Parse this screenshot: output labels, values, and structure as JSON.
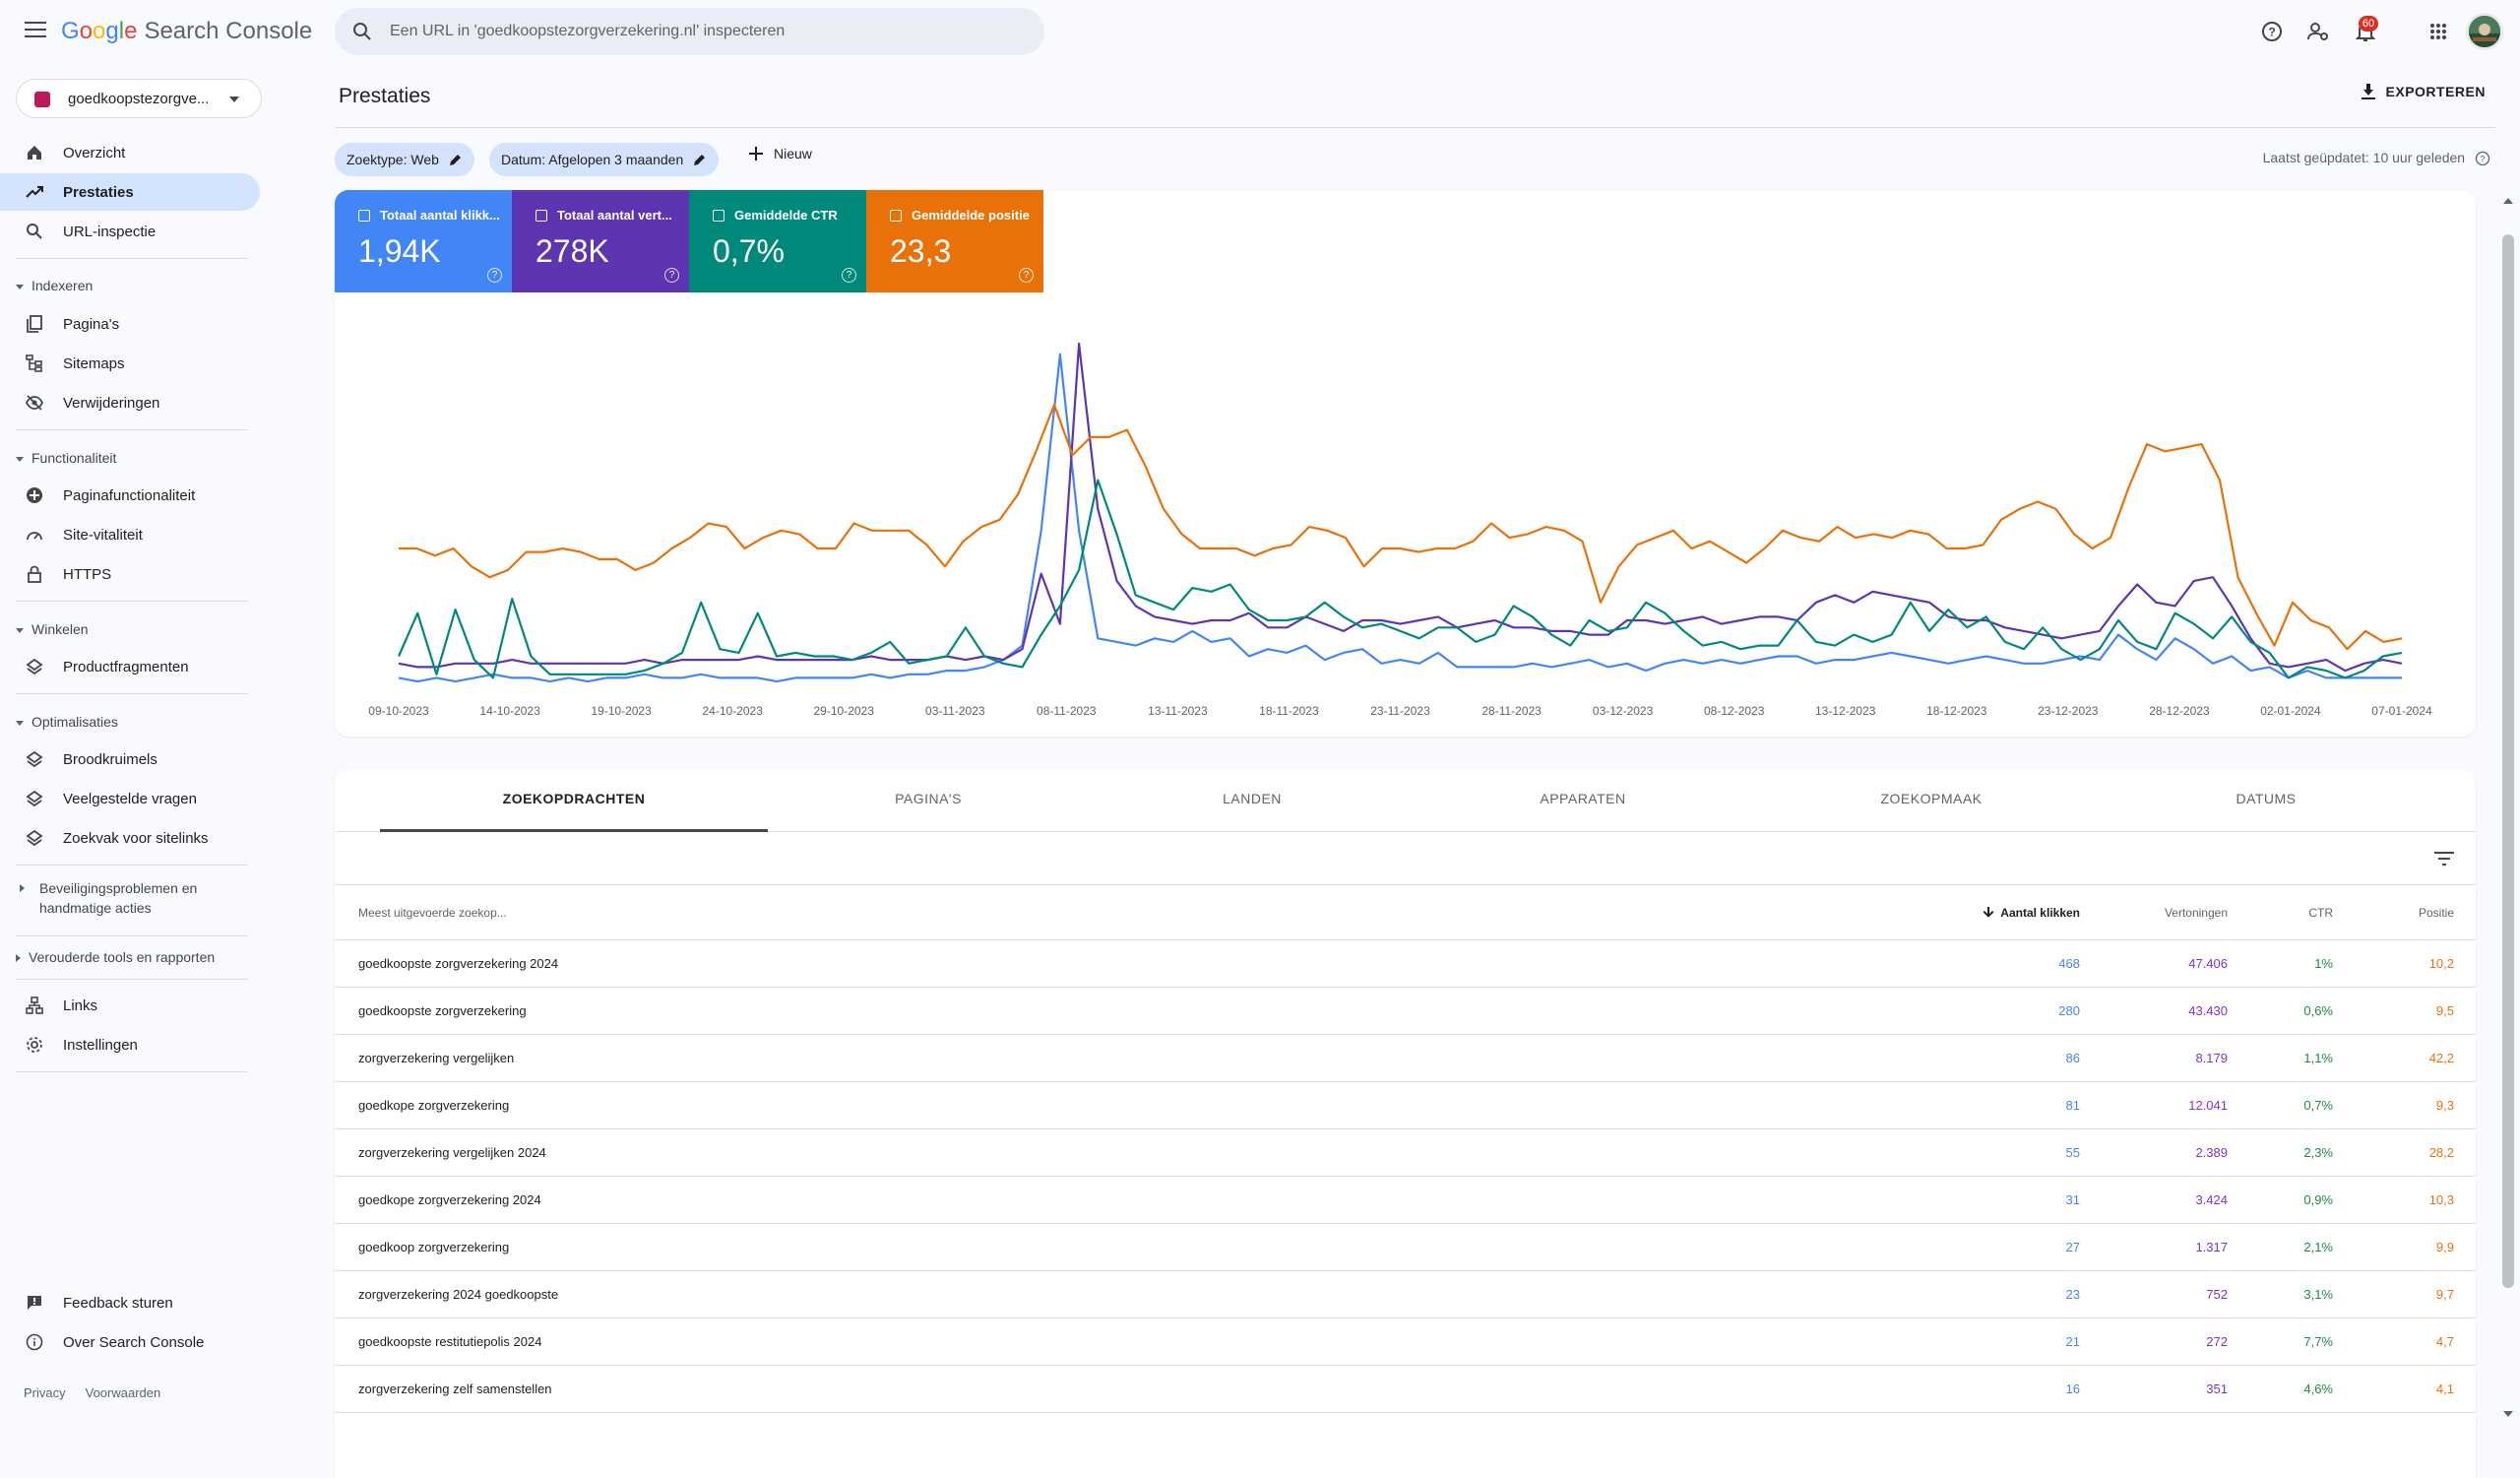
{
  "app": {
    "logo_google": "Google",
    "logo_product": "Search Console",
    "search_placeholder": "Een URL in 'goedkoopstezorgverzekering.nl' inspecteren",
    "notifications_count": "60"
  },
  "sidebar": {
    "property": "goedkoopstezorgve...",
    "items": {
      "overview": "Overzicht",
      "performance": "Prestaties",
      "url": "URL-inspectie",
      "pages": "Pagina's",
      "sitemaps": "Sitemaps",
      "removals": "Verwijderingen",
      "page_exp": "Paginafunctionaliteit",
      "vitals": "Site-vitaliteit",
      "https": "HTTPS",
      "products": "Productfragmenten",
      "breadcrumbs": "Broodkruimels",
      "faq": "Veelgestelde vragen",
      "sitelinks": "Zoekvak voor sitelinks",
      "links": "Links",
      "settings": "Instellingen",
      "feedback": "Feedback sturen",
      "about": "Over Search Console"
    },
    "sections": {
      "indexing": "Indexeren",
      "functionality": "Functionaliteit",
      "shopping": "Winkelen",
      "enhancements": "Optimalisaties",
      "security": "Beveiligingsproblemen en handmatige acties",
      "legacy": "Verouderde tools en rapporten"
    },
    "footer": {
      "privacy": "Privacy",
      "terms": "Voorwaarden"
    }
  },
  "main": {
    "title": "Prestaties",
    "export": "EXPORTEREN",
    "filters": {
      "type": "Zoektype: Web",
      "date": "Datum: Afgelopen 3 maanden",
      "new": "Nieuw"
    },
    "updated": "Laatst geüpdatet: 10 uur geleden",
    "metrics": [
      {
        "label": "Totaal aantal klikk...",
        "value": "1,94K",
        "color": "#4285f4"
      },
      {
        "label": "Totaal aantal vert...",
        "value": "278K",
        "color": "#5e35b1"
      },
      {
        "label": "Gemiddelde CTR",
        "value": "0,7%",
        "color": "#00897b"
      },
      {
        "label": "Gemiddelde positie",
        "value": "23,3",
        "color": "#e8710a"
      }
    ],
    "tabs": [
      "ZOEKOPDRACHTEN",
      "PAGINA'S",
      "LANDEN",
      "APPARATEN",
      "ZOEKOPMAAK",
      "DATUMS"
    ],
    "table": {
      "headers": [
        "Meest uitgevoerde zoekop...",
        "Aantal klikken",
        "Vertoningen",
        "CTR",
        "Positie"
      ],
      "rows": [
        [
          "goedkoopste zorgverzekering 2024",
          "468",
          "47.406",
          "1%",
          "10,2"
        ],
        [
          "goedkoopste zorgverzekering",
          "280",
          "43.430",
          "0,6%",
          "9,5"
        ],
        [
          "zorgverzekering vergelijken",
          "86",
          "8.179",
          "1,1%",
          "42,2"
        ],
        [
          "goedkope zorgverzekering",
          "81",
          "12.041",
          "0,7%",
          "9,3"
        ],
        [
          "zorgverzekering vergelijken 2024",
          "55",
          "2.389",
          "2,3%",
          "28,2"
        ],
        [
          "goedkope zorgverzekering 2024",
          "31",
          "3.424",
          "0,9%",
          "10,3"
        ],
        [
          "goedkoop zorgverzekering",
          "27",
          "1.317",
          "2,1%",
          "9,9"
        ],
        [
          "zorgverzekering 2024 goedkoopste",
          "23",
          "752",
          "3,1%",
          "9,7"
        ],
        [
          "goedkoopste restitutiepolis 2024",
          "21",
          "272",
          "7,7%",
          "4,7"
        ],
        [
          "zorgverzekering zelf samenstellen",
          "16",
          "351",
          "4,6%",
          "4,1"
        ]
      ]
    }
  },
  "chart_data": {
    "type": "line",
    "x_tick_labels": [
      "09-10-2023",
      "14-10-2023",
      "19-10-2023",
      "24-10-2023",
      "29-10-2023",
      "03-11-2023",
      "08-11-2023",
      "13-11-2023",
      "18-11-2023",
      "23-11-2023",
      "28-11-2023",
      "03-12-2023",
      "08-12-2023",
      "13-12-2023",
      "18-12-2023",
      "23-12-2023",
      "28-12-2023",
      "02-01-2024",
      "07-01-2024"
    ],
    "ylim": [
      0,
      100
    ],
    "grid": false,
    "series": [
      {
        "metric": "clicks",
        "color": "#4285f4",
        "values": [
          4,
          3,
          4,
          3,
          4,
          5,
          4,
          4,
          3,
          4,
          3,
          4,
          4,
          5,
          4,
          4,
          5,
          4,
          4,
          4,
          3,
          4,
          4,
          4,
          4,
          5,
          4,
          5,
          5,
          6,
          6,
          7,
          9,
          13,
          45,
          94,
          45,
          15,
          14,
          13,
          15,
          14,
          17,
          14,
          15,
          10,
          12,
          11,
          13,
          9,
          11,
          12,
          8,
          9,
          8,
          11,
          7,
          7,
          7,
          7,
          8,
          7,
          8,
          9,
          7,
          8,
          6,
          8,
          9,
          8,
          9,
          8,
          9,
          10,
          10,
          8,
          9,
          9,
          10,
          11,
          10,
          9,
          8,
          9,
          10,
          9,
          8,
          8,
          9,
          10,
          9,
          16,
          12,
          9,
          15,
          12,
          8,
          10,
          6,
          7,
          4,
          6,
          4,
          4,
          4,
          4,
          4
        ]
      },
      {
        "metric": "impressions",
        "color": "#5e35b1",
        "values": [
          8,
          7,
          7,
          8,
          8,
          8,
          9,
          8,
          8,
          8,
          8,
          8,
          8,
          9,
          8,
          9,
          9,
          9,
          9,
          10,
          9,
          9,
          9,
          9,
          9,
          10,
          9,
          9,
          9,
          10,
          9,
          10,
          9,
          12,
          33,
          19,
          97,
          51,
          31,
          24,
          21,
          20,
          19,
          20,
          20,
          22,
          18,
          18,
          21,
          19,
          17,
          20,
          20,
          19,
          20,
          21,
          18,
          19,
          20,
          18,
          18,
          17,
          17,
          16,
          16,
          20,
          20,
          19,
          20,
          21,
          19,
          20,
          21,
          21,
          20,
          25,
          27,
          25,
          28,
          27,
          26,
          25,
          21,
          20,
          20,
          18,
          17,
          16,
          15,
          16,
          17,
          24,
          30,
          25,
          24,
          31,
          32,
          24,
          15,
          8,
          7,
          8,
          9,
          6,
          8,
          9,
          8
        ]
      },
      {
        "metric": "ctr",
        "color": "#00897b",
        "values": [
          10,
          22,
          5,
          23,
          9,
          4,
          26,
          10,
          5,
          5,
          5,
          5,
          5,
          6,
          8,
          11,
          25,
          12,
          11,
          22,
          10,
          11,
          10,
          10,
          9,
          11,
          14,
          8,
          9,
          10,
          18,
          10,
          8,
          7,
          16,
          24,
          34,
          59,
          44,
          27,
          25,
          23,
          29,
          28,
          30,
          23,
          20,
          20,
          21,
          25,
          21,
          18,
          19,
          17,
          15,
          18,
          18,
          14,
          16,
          24,
          21,
          16,
          13,
          20,
          17,
          18,
          25,
          22,
          17,
          13,
          14,
          12,
          13,
          13,
          20,
          14,
          13,
          16,
          14,
          16,
          25,
          17,
          23,
          18,
          21,
          14,
          12,
          18,
          12,
          9,
          12,
          20,
          14,
          12,
          22,
          19,
          15,
          21,
          14,
          11,
          4,
          7,
          6,
          4,
          6,
          10,
          11
        ]
      },
      {
        "metric": "position",
        "color": "#e8710a",
        "values": [
          40,
          40,
          38,
          40,
          35,
          32,
          34,
          39,
          39,
          40,
          39,
          37,
          37,
          34,
          36,
          40,
          43,
          47,
          46,
          40,
          43,
          45,
          44,
          40,
          40,
          47,
          45,
          45,
          45,
          41,
          35,
          42,
          46,
          48,
          55,
          67,
          80,
          66,
          71,
          71,
          73,
          63,
          51,
          44,
          40,
          40,
          40,
          38,
          40,
          41,
          46,
          45,
          43,
          35,
          40,
          40,
          39,
          40,
          40,
          42,
          47,
          43,
          44,
          46,
          45,
          42,
          25,
          35,
          41,
          43,
          45,
          40,
          42,
          39,
          36,
          40,
          45,
          43,
          42,
          46,
          43,
          44,
          43,
          45,
          44,
          40,
          40,
          41,
          48,
          51,
          53,
          51,
          44,
          40,
          43,
          57,
          69,
          67,
          68,
          69,
          59,
          32,
          22,
          13,
          25,
          20,
          18,
          12,
          17,
          14,
          15
        ]
      }
    ]
  }
}
